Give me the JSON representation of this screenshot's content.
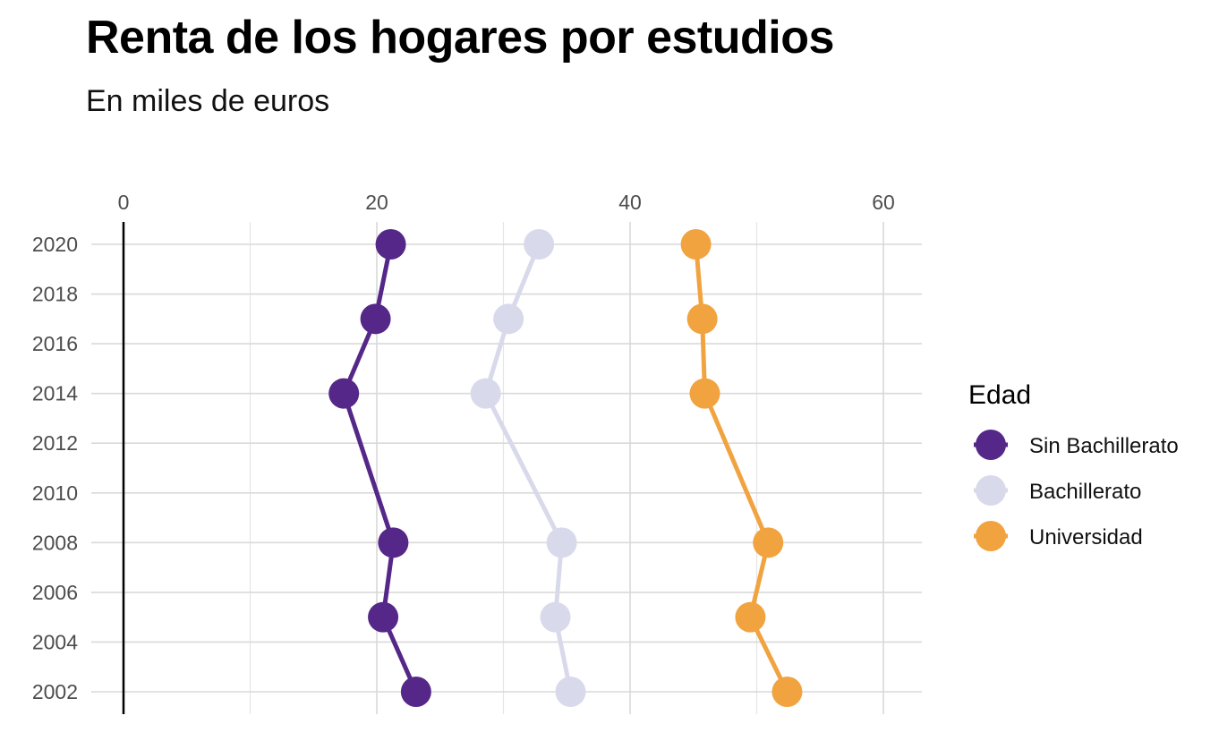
{
  "title": "Renta de los hogares por estudios",
  "subtitle": "En miles de euros",
  "chart_data": {
    "type": "line",
    "orientation": "horizontal",
    "title": "Renta de los hogares por estudios",
    "subtitle": "En miles de euros",
    "xlim": [
      0,
      63
    ],
    "ylim": [
      2001,
      2021
    ],
    "x_ticks": [
      0,
      20,
      40,
      60
    ],
    "x_tick_labels": [
      "0",
      "20",
      "40",
      "60"
    ],
    "y_ticks": [
      2002,
      2004,
      2006,
      2008,
      2010,
      2012,
      2014,
      2016,
      2018,
      2020
    ],
    "y_tick_labels": [
      "2002",
      "2004",
      "2006",
      "2008",
      "2010",
      "2012",
      "2014",
      "2016",
      "2018",
      "2020"
    ],
    "x_axis_position": "top",
    "grid": true,
    "legend": {
      "title": "Edad",
      "position": "right"
    },
    "years": [
      2002,
      2005,
      2008,
      2014,
      2017,
      2020
    ],
    "series": [
      {
        "name": "Sin Bachillerato",
        "color": "#542788",
        "values": [
          23.1,
          20.5,
          21.3,
          17.4,
          19.9,
          21.1
        ]
      },
      {
        "name": "Bachillerato",
        "color": "#d8daeb",
        "values": [
          35.3,
          34.1,
          34.6,
          28.6,
          30.4,
          32.8
        ]
      },
      {
        "name": "Universidad",
        "color": "#f1a340",
        "values": [
          52.4,
          49.5,
          50.9,
          45.9,
          45.7,
          45.2
        ]
      }
    ]
  }
}
